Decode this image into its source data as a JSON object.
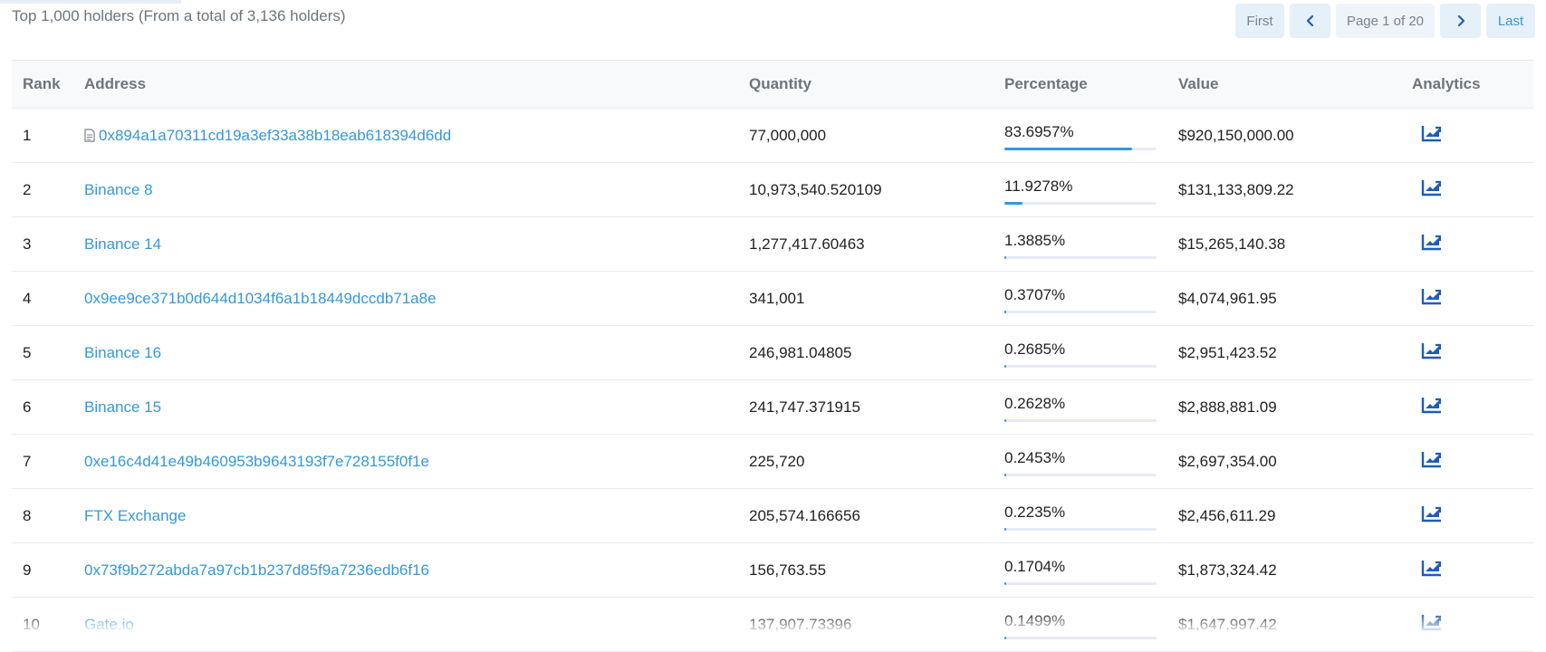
{
  "summary": "Top 1,000 holders (From a total of 3,136 holders)",
  "pager": {
    "first": "First",
    "page": "Page 1 of 20",
    "last": "Last"
  },
  "headers": {
    "rank": "Rank",
    "address": "Address",
    "quantity": "Quantity",
    "percentage": "Percentage",
    "value": "Value",
    "analytics": "Analytics"
  },
  "rows": [
    {
      "rank": "1",
      "address": "0x894a1a70311cd19a3ef33a38b18eab618394d6dd",
      "is_contract": true,
      "quantity": "77,000,000",
      "percentage": "83.6957%",
      "pct_value": 83.6957,
      "value": "$920,150,000.00"
    },
    {
      "rank": "2",
      "address": "Binance 8",
      "is_contract": false,
      "quantity": "10,973,540.520109",
      "percentage": "11.9278%",
      "pct_value": 11.9278,
      "value": "$131,133,809.22"
    },
    {
      "rank": "3",
      "address": "Binance 14",
      "is_contract": false,
      "quantity": "1,277,417.60463",
      "percentage": "1.3885%",
      "pct_value": 1.3885,
      "value": "$15,265,140.38"
    },
    {
      "rank": "4",
      "address": "0x9ee9ce371b0d644d1034f6a1b18449dccdb71a8e",
      "is_contract": false,
      "quantity": "341,001",
      "percentage": "0.3707%",
      "pct_value": 0.3707,
      "value": "$4,074,961.95"
    },
    {
      "rank": "5",
      "address": "Binance 16",
      "is_contract": false,
      "quantity": "246,981.04805",
      "percentage": "0.2685%",
      "pct_value": 0.2685,
      "value": "$2,951,423.52"
    },
    {
      "rank": "6",
      "address": "Binance 15",
      "is_contract": false,
      "quantity": "241,747.371915",
      "percentage": "0.2628%",
      "pct_value": 0.2628,
      "value": "$2,888,881.09"
    },
    {
      "rank": "7",
      "address": "0xe16c4d41e49b460953b9643193f7e728155f0f1e",
      "is_contract": false,
      "quantity": "225,720",
      "percentage": "0.2453%",
      "pct_value": 0.2453,
      "value": "$2,697,354.00"
    },
    {
      "rank": "8",
      "address": "FTX Exchange",
      "is_contract": false,
      "quantity": "205,574.166656",
      "percentage": "0.2235%",
      "pct_value": 0.2235,
      "value": "$2,456,611.29"
    },
    {
      "rank": "9",
      "address": "0x73f9b272abda7a97cb1b237d85f9a7236edb6f16",
      "is_contract": false,
      "quantity": "156,763.55",
      "percentage": "0.1704%",
      "pct_value": 0.1704,
      "value": "$1,873,324.42"
    },
    {
      "rank": "10",
      "address": "Gate.io",
      "is_contract": false,
      "quantity": "137,907.73396",
      "percentage": "0.1499%",
      "pct_value": 0.1499,
      "value": "$1,647,997.42"
    }
  ],
  "icons": {
    "row_analytics": "chart-line-icon",
    "contract": "document-icon",
    "prev": "chevron-left-icon",
    "next": "chevron-right-icon"
  },
  "colors": {
    "link": "#3498db",
    "bar_fill": "#3498db",
    "bar_track": "#e7eaf3",
    "header_bg": "#f8f9fa",
    "pager_bg": "#e6f0f8"
  }
}
